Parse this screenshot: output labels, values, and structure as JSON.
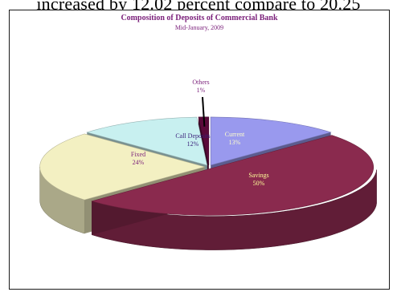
{
  "page": {
    "body_text": "increased by 12.02 percent compare to 20.25"
  },
  "chart_data": {
    "type": "pie",
    "title": "Composition of Deposits of Commercial Bank",
    "subtitle": "Mid-January, 2009",
    "style": "3d-exploded",
    "slices": [
      {
        "label": "Current",
        "value": 13,
        "display": "13%",
        "color": "#9999ee",
        "label_color": "#ffffcc"
      },
      {
        "label": "Savings",
        "value": 50,
        "display": "50%",
        "color": "#8a2a4e",
        "label_color": "#ffff99"
      },
      {
        "label": "Fixed",
        "value": 24,
        "display": "24%",
        "color": "#f3f0c2",
        "label_color": "#7a1f7a"
      },
      {
        "label": "Call Deposits",
        "value": 12,
        "display": "12%",
        "color": "#c8f0f0",
        "label_color": "#3a1f7a"
      },
      {
        "label": "Others",
        "value": 1,
        "display": "1%",
        "color": "#5a0a3a",
        "label_color": "#7a1f7a"
      }
    ]
  }
}
